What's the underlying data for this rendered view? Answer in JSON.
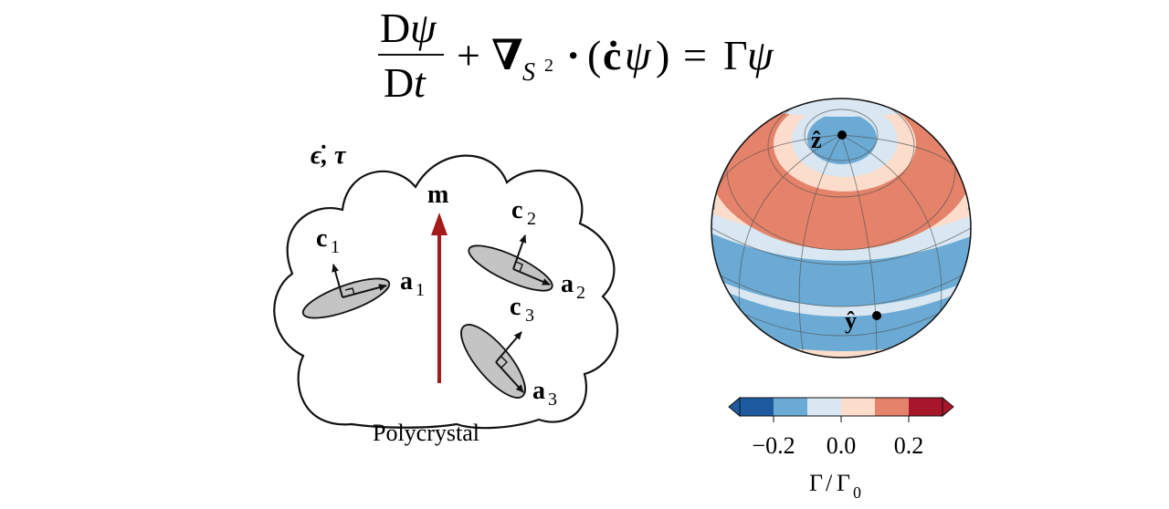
{
  "equation": {
    "num_D": "D",
    "num_psi": "ψ",
    "den_D": "D",
    "den_t": "t",
    "plus": "+",
    "nabla": "∇",
    "sub_S": "S",
    "sub_2": "2",
    "dot_op": "·",
    "open_paren": "(",
    "cdot": "ċ",
    "psi_in": "ψ",
    "close_paren": ")",
    "equals": "=",
    "Gamma": "Γ",
    "psi_out": "ψ"
  },
  "polycrystal": {
    "forcing_label": "ϵ̇, τ",
    "m_label": "m",
    "c1_base": "c",
    "c1_sub": "1",
    "a1_base": "a",
    "a1_sub": "1",
    "c2_base": "c",
    "c2_sub": "2",
    "a2_base": "a",
    "a2_sub": "2",
    "c3_base": "c",
    "c3_sub": "3",
    "a3_base": "a",
    "a3_sub": "3",
    "caption": "Polycrystal",
    "arrow_color": "#a31a1a",
    "grain_fill": "#c4c4c4"
  },
  "sphere": {
    "z_label": "ẑ",
    "y_label": "ŷ"
  },
  "colorbar": {
    "ticks": [
      "−0.2",
      "0.0",
      "0.2"
    ],
    "label_G": "Γ",
    "label_slash": "/",
    "label_G0": "Γ",
    "label_sub": "0",
    "colors": [
      "#1d5aa0",
      "#6aaad4",
      "#d8e7f1",
      "#fcddcb",
      "#e5826a",
      "#a8162c"
    ]
  }
}
